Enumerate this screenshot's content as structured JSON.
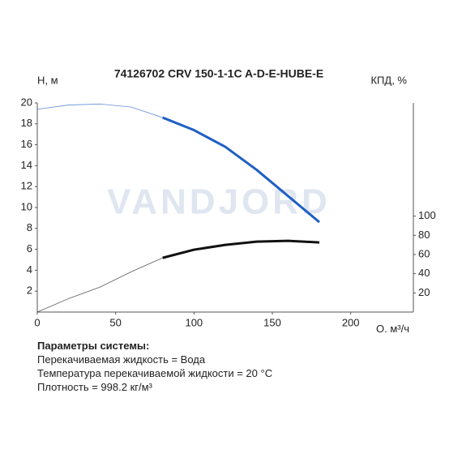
{
  "chart_data": {
    "type": "line",
    "title": "74126702 CRV 150-1-1C A-D-E-HUBE-E",
    "watermark": "VANDJORD",
    "y_label": "H, м",
    "y2_label": "КПД, %",
    "x_label": "Q, м³/ч",
    "x": [
      0,
      20,
      40,
      60,
      80,
      100,
      120,
      140,
      160,
      180
    ],
    "operating_range": [
      80,
      180
    ],
    "series": [
      {
        "name": "H",
        "color": "#1f5fc4",
        "values": [
          19.4,
          19.8,
          19.9,
          19.6,
          18.6,
          17.4,
          15.8,
          13.6,
          11.1,
          8.6
        ]
      },
      {
        "name": "КПД",
        "color": "#111111",
        "axis": "y2",
        "values": [
          0,
          14,
          26,
          42,
          56.5,
          65,
          70,
          73.4,
          74.3,
          72.6
        ]
      }
    ],
    "xlim": [
      0,
      240
    ],
    "xticks": [
      0,
      50,
      100,
      150,
      200
    ],
    "ylim": [
      0,
      20
    ],
    "yticks": [
      2,
      4,
      6,
      8,
      10,
      12,
      14,
      16,
      18,
      20
    ],
    "y2lim": [
      0,
      218
    ],
    "y2ticks": [
      20,
      40,
      60,
      80,
      100
    ]
  },
  "parameters": {
    "title": "Параметры системы:",
    "lines": [
      "Перекачиваемая жидкость = Вода",
      "Температура перекачиваемой жидкости = 20 °C",
      "Плотность = 998.2 кг/м³"
    ]
  }
}
